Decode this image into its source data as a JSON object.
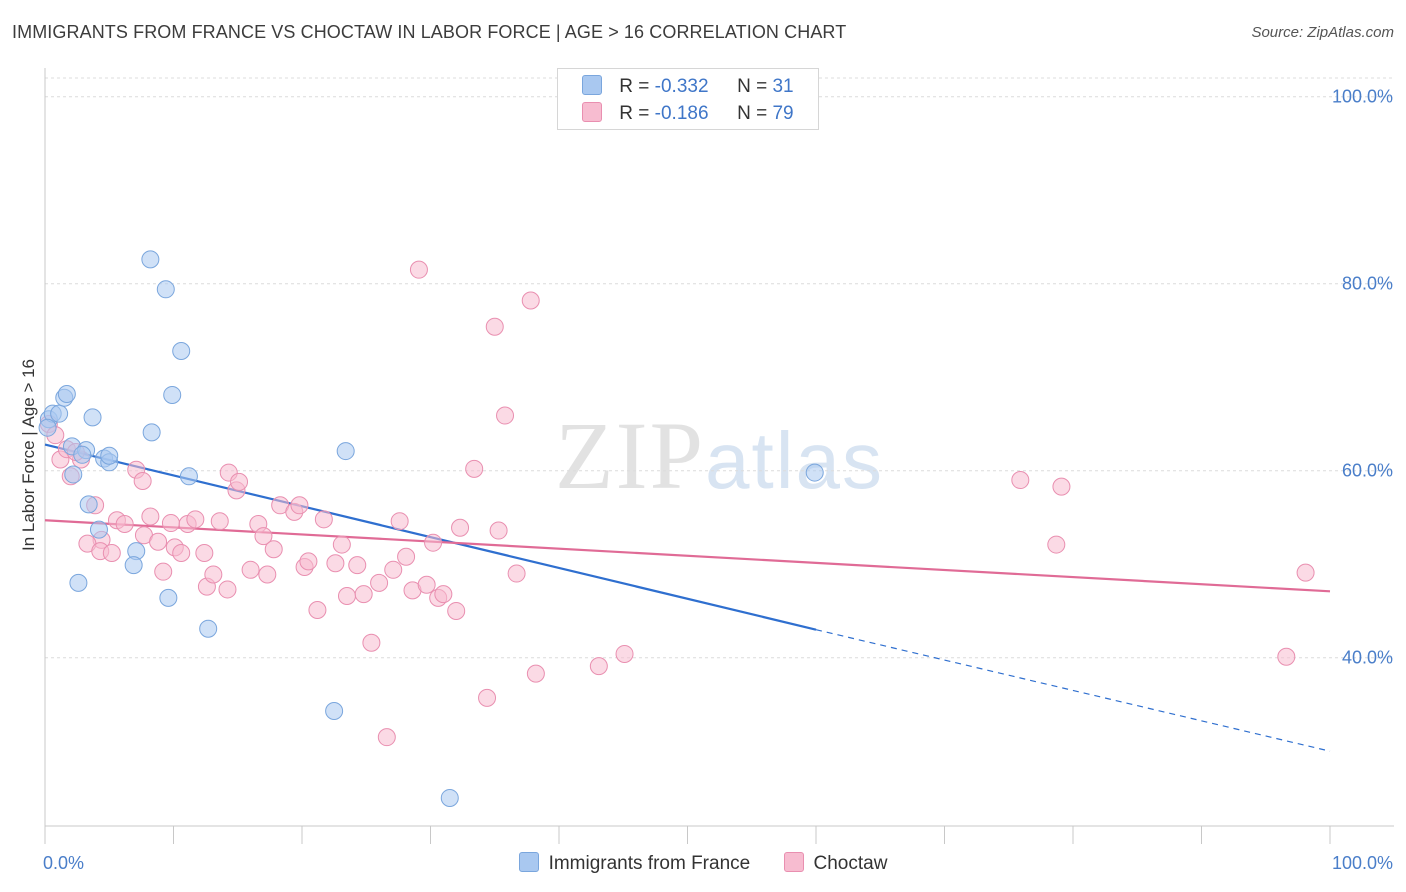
{
  "header": {
    "title": "IMMIGRANTS FROM FRANCE VS CHOCTAW IN LABOR FORCE | AGE > 16 CORRELATION CHART",
    "source": "Source: ZipAtlas.com"
  },
  "watermark": {
    "zip": "ZIP",
    "atlas": "atlas"
  },
  "legend": {
    "rows": [
      {
        "r_label": "R = ",
        "r_value": "-0.332",
        "n_label": "N = ",
        "n_value": "31",
        "color": "#a9c8f0",
        "border": "#7aa6dd"
      },
      {
        "r_label": "R = ",
        "r_value": "-0.186",
        "n_label": "N = ",
        "n_value": "79",
        "color": "#f7bcd0",
        "border": "#e98fb0"
      }
    ]
  },
  "bottom_legend": {
    "items": [
      {
        "label": "Immigrants from France",
        "color": "#a9c8f0",
        "border": "#7aa6dd"
      },
      {
        "label": "Choctaw",
        "color": "#f7bcd0",
        "border": "#e98fb0"
      }
    ]
  },
  "chart_data": {
    "type": "scatter",
    "title": "IMMIGRANTS FROM FRANCE VS CHOCTAW IN LABOR FORCE | AGE > 16 CORRELATION CHART",
    "xlabel": "",
    "ylabel": "In Labor Force | Age > 16",
    "xlim": [
      0,
      100
    ],
    "ylim": [
      22,
      102
    ],
    "x_tick_labels": [
      "0.0%",
      "100.0%"
    ],
    "y_ticks": [
      40,
      60,
      80,
      100
    ],
    "y_tick_labels": [
      "40.0%",
      "60.0%",
      "80.0%",
      "100.0%"
    ],
    "grid": true,
    "series": [
      {
        "name": "Immigrants from France",
        "color": "#7aa6dd",
        "fill": "#a9c8f0",
        "trend": {
          "x0": 0,
          "y0": 62.8,
          "x1": 60,
          "y1": 43.0,
          "dash_to_x": 100,
          "dash_to_y": 30.0,
          "line_color": "#2f6fcf"
        },
        "points": [
          [
            0.3,
            65.5
          ],
          [
            0.6,
            66.1
          ],
          [
            1.1,
            66.1
          ],
          [
            1.5,
            67.8
          ],
          [
            1.7,
            68.2
          ],
          [
            3.7,
            65.7
          ],
          [
            8.2,
            82.6
          ],
          [
            9.4,
            79.4
          ],
          [
            10.6,
            72.8
          ],
          [
            9.9,
            68.1
          ],
          [
            8.3,
            64.1
          ],
          [
            11.2,
            59.4
          ],
          [
            2.1,
            62.6
          ],
          [
            3.2,
            62.2
          ],
          [
            2.9,
            61.7
          ],
          [
            4.6,
            61.3
          ],
          [
            5.0,
            60.9
          ],
          [
            5.0,
            61.6
          ],
          [
            2.2,
            59.6
          ],
          [
            3.4,
            56.4
          ],
          [
            4.2,
            53.7
          ],
          [
            7.1,
            51.4
          ],
          [
            6.9,
            49.9
          ],
          [
            2.6,
            48.0
          ],
          [
            9.6,
            46.4
          ],
          [
            12.7,
            43.1
          ],
          [
            23.4,
            62.1
          ],
          [
            22.5,
            34.3
          ],
          [
            31.5,
            25.0
          ],
          [
            59.9,
            59.8
          ],
          [
            0.2,
            64.6
          ]
        ]
      },
      {
        "name": "Choctaw",
        "color": "#e98fb0",
        "fill": "#f7bcd0",
        "trend": {
          "x0": 0,
          "y0": 54.7,
          "x1": 100,
          "y1": 47.1,
          "line_color": "#e06b96"
        },
        "points": [
          [
            1.2,
            61.2
          ],
          [
            1.7,
            62.3
          ],
          [
            2.0,
            59.4
          ],
          [
            2.8,
            61.2
          ],
          [
            3.9,
            56.3
          ],
          [
            4.4,
            52.6
          ],
          [
            3.3,
            52.2
          ],
          [
            4.3,
            51.4
          ],
          [
            5.2,
            51.2
          ],
          [
            5.6,
            54.7
          ],
          [
            6.2,
            54.3
          ],
          [
            7.1,
            60.1
          ],
          [
            7.6,
            58.9
          ],
          [
            8.2,
            55.1
          ],
          [
            7.7,
            53.1
          ],
          [
            8.8,
            52.4
          ],
          [
            9.2,
            49.2
          ],
          [
            9.8,
            54.4
          ],
          [
            10.1,
            51.8
          ],
          [
            10.6,
            51.2
          ],
          [
            11.1,
            54.3
          ],
          [
            11.7,
            54.8
          ],
          [
            12.4,
            51.2
          ],
          [
            12.6,
            47.6
          ],
          [
            13.1,
            48.9
          ],
          [
            13.6,
            54.6
          ],
          [
            14.2,
            47.3
          ],
          [
            14.3,
            59.8
          ],
          [
            14.9,
            57.9
          ],
          [
            15.1,
            58.8
          ],
          [
            16.0,
            49.4
          ],
          [
            16.6,
            54.3
          ],
          [
            17.0,
            53.0
          ],
          [
            17.3,
            48.9
          ],
          [
            17.8,
            51.6
          ],
          [
            18.3,
            56.3
          ],
          [
            19.4,
            55.6
          ],
          [
            19.8,
            56.3
          ],
          [
            20.2,
            49.7
          ],
          [
            20.5,
            50.3
          ],
          [
            21.2,
            45.1
          ],
          [
            21.7,
            54.8
          ],
          [
            22.6,
            50.1
          ],
          [
            23.1,
            52.1
          ],
          [
            23.5,
            46.6
          ],
          [
            24.3,
            49.9
          ],
          [
            24.8,
            46.8
          ],
          [
            25.4,
            41.6
          ],
          [
            26.0,
            48.0
          ],
          [
            26.6,
            31.5
          ],
          [
            27.1,
            49.4
          ],
          [
            27.6,
            54.6
          ],
          [
            28.1,
            50.8
          ],
          [
            28.6,
            47.2
          ],
          [
            29.1,
            81.5
          ],
          [
            29.7,
            47.8
          ],
          [
            30.2,
            52.3
          ],
          [
            30.6,
            46.4
          ],
          [
            31.0,
            46.8
          ],
          [
            32.0,
            45.0
          ],
          [
            32.3,
            53.9
          ],
          [
            33.4,
            60.2
          ],
          [
            34.4,
            35.7
          ],
          [
            35.0,
            75.4
          ],
          [
            35.3,
            53.6
          ],
          [
            35.8,
            65.9
          ],
          [
            36.7,
            49.0
          ],
          [
            37.8,
            78.2
          ],
          [
            38.2,
            38.3
          ],
          [
            43.1,
            39.1
          ],
          [
            45.1,
            40.4
          ],
          [
            75.9,
            59.0
          ],
          [
            79.1,
            58.3
          ],
          [
            78.7,
            52.1
          ],
          [
            96.6,
            40.1
          ],
          [
            98.1,
            49.1
          ],
          [
            0.3,
            65.0
          ],
          [
            0.8,
            63.8
          ],
          [
            2.4,
            62.0
          ]
        ]
      }
    ]
  }
}
